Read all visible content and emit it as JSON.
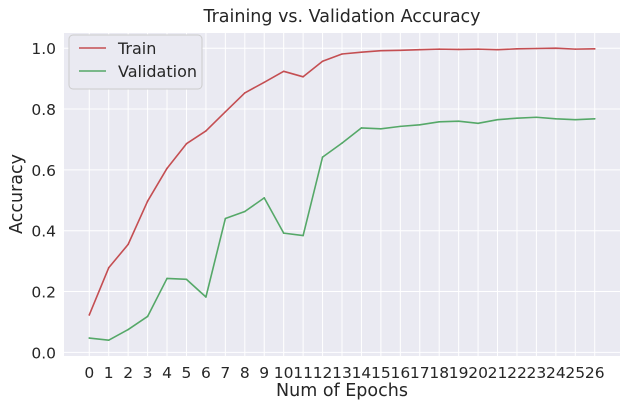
{
  "chart_data": {
    "type": "line",
    "title": "Training vs. Validation Accuracy",
    "xlabel": "Num of Epochs",
    "ylabel": "Accuracy",
    "x": [
      0,
      1,
      2,
      3,
      4,
      5,
      6,
      7,
      8,
      9,
      10,
      11,
      12,
      13,
      14,
      15,
      16,
      17,
      18,
      19,
      20,
      21,
      22,
      23,
      24,
      25,
      26
    ],
    "xlim": [
      -1.3,
      27.3
    ],
    "ylim": [
      -0.012,
      1.05
    ],
    "yticks": [
      0.0,
      0.2,
      0.4,
      0.6,
      0.8,
      1.0
    ],
    "ytick_labels": [
      "0.0",
      "0.2",
      "0.4",
      "0.6",
      "0.8",
      "1.0"
    ],
    "grid": true,
    "legend_position": "upper-left",
    "series": [
      {
        "name": "Train",
        "color": "#c44e52",
        "values": [
          0.123,
          0.278,
          0.355,
          0.497,
          0.605,
          0.686,
          0.728,
          0.791,
          0.853,
          0.888,
          0.924,
          0.906,
          0.957,
          0.981,
          0.987,
          0.992,
          0.993,
          0.995,
          0.997,
          0.996,
          0.997,
          0.995,
          0.998,
          0.999,
          1.0,
          0.997,
          0.998
        ]
      },
      {
        "name": "Validation",
        "color": "#55a868",
        "values": [
          0.047,
          0.04,
          0.075,
          0.118,
          0.243,
          0.24,
          0.182,
          0.44,
          0.463,
          0.508,
          0.392,
          0.384,
          0.642,
          0.688,
          0.738,
          0.735,
          0.743,
          0.748,
          0.758,
          0.76,
          0.753,
          0.765,
          0.77,
          0.773,
          0.768,
          0.765,
          0.768
        ]
      }
    ]
  }
}
